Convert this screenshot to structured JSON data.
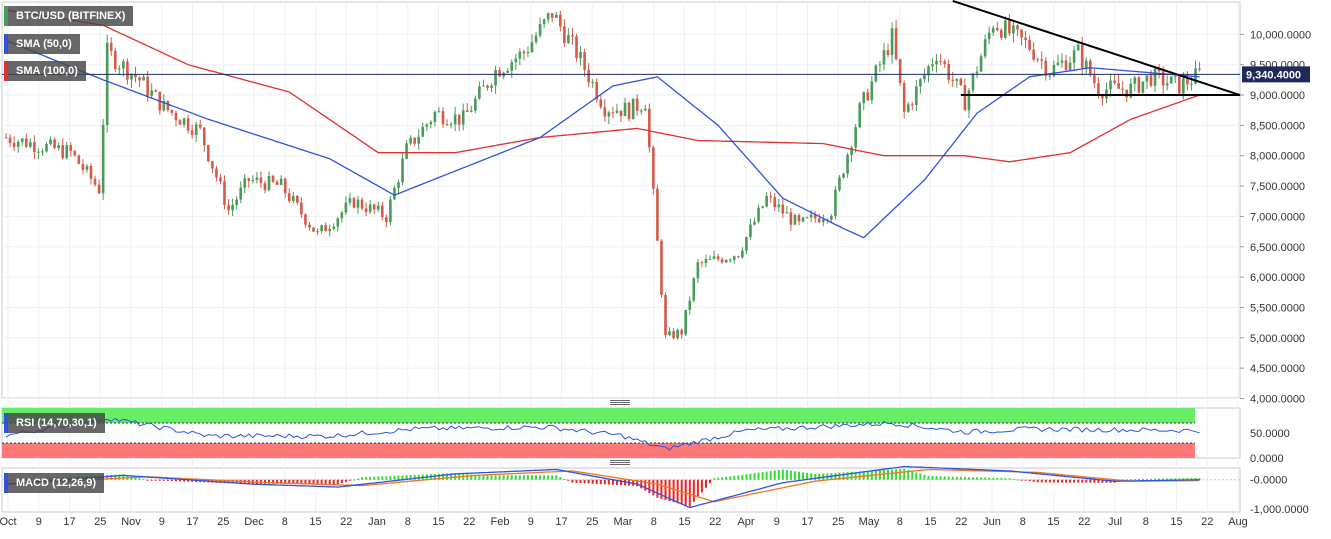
{
  "legend": {
    "symbol": "BTC/USD (BITFINEX)",
    "sma50": "SMA (50,0)",
    "sma100": "SMA (100,0)",
    "rsi": "RSI (14,70,30,1)",
    "macd": "MACD (12,26,9)"
  },
  "colors": {
    "up": "#4a9a5a",
    "down": "#d55a4a",
    "sma50": "#2f53e0",
    "sma100": "#e03030",
    "trend": "#000000",
    "rsi_over": "#66ee66",
    "rsi_under": "#ff7777",
    "macd_pos": "#33dd33",
    "macd_neg": "#ee2222",
    "macd_line": "#2f53e0",
    "signal_line": "#ee7722",
    "price_tag_bg": "#1e2a5a"
  },
  "chart_data": [
    {
      "type": "candlestick",
      "title": "BTC/USD (BITFINEX)",
      "x_tick_labels": [
        "Oct",
        "9",
        "17",
        "25",
        "Nov",
        "9",
        "17",
        "25",
        "Dec",
        "8",
        "15",
        "22",
        "Jan",
        "8",
        "15",
        "22",
        "Feb",
        "9",
        "17",
        "25",
        "Mar",
        "8",
        "15",
        "22",
        "Apr",
        "9",
        "17",
        "25",
        "May",
        "8",
        "15",
        "22",
        "Jun",
        "8",
        "15",
        "22",
        "Jul",
        "8",
        "15",
        "22",
        "Aug"
      ],
      "y_tick_labels": [
        "10,000.0000",
        "9,500.0000",
        "9,000.0000",
        "8,500.0000",
        "8,000.0000",
        "7,500.0000",
        "7,000.0000",
        "6,500.0000",
        "6,000.0000",
        "5,500.0000",
        "5,000.0000",
        "4,500.0000",
        "4,000.0000"
      ],
      "ylim": [
        4000,
        10500
      ],
      "last_price_label": "9,340.4000",
      "last_price": 9340.4,
      "grid": true,
      "key_points": [
        {
          "date": "2019-10-01",
          "close": 8300
        },
        {
          "date": "2019-10-17",
          "close": 8050
        },
        {
          "date": "2019-10-24",
          "close": 7450
        },
        {
          "date": "2019-10-26",
          "close": 9700
        },
        {
          "date": "2019-11-03",
          "close": 9250
        },
        {
          "date": "2019-11-09",
          "close": 8800
        },
        {
          "date": "2019-11-18",
          "close": 8400
        },
        {
          "date": "2019-11-25",
          "close": 7100
        },
        {
          "date": "2019-11-30",
          "close": 7600
        },
        {
          "date": "2019-12-08",
          "close": 7500
        },
        {
          "date": "2019-12-17",
          "close": 6700
        },
        {
          "date": "2019-12-26",
          "close": 7250
        },
        {
          "date": "2020-01-03",
          "close": 7000
        },
        {
          "date": "2020-01-08",
          "close": 8100
        },
        {
          "date": "2020-01-15",
          "close": 8700
        },
        {
          "date": "2020-01-22",
          "close": 8600
        },
        {
          "date": "2020-01-30",
          "close": 9400
        },
        {
          "date": "2020-02-06",
          "close": 9700
        },
        {
          "date": "2020-02-13",
          "close": 10350
        },
        {
          "date": "2020-02-19",
          "close": 9700
        },
        {
          "date": "2020-02-26",
          "close": 8800
        },
        {
          "date": "2020-03-03",
          "close": 8750
        },
        {
          "date": "2020-03-07",
          "close": 8900
        },
        {
          "date": "2020-03-12",
          "close": 5000
        },
        {
          "date": "2020-03-16",
          "close": 5100
        },
        {
          "date": "2020-03-20",
          "close": 6200
        },
        {
          "date": "2020-03-30",
          "close": 6400
        },
        {
          "date": "2020-04-06",
          "close": 7300
        },
        {
          "date": "2020-04-14",
          "close": 6850
        },
        {
          "date": "2020-04-22",
          "close": 7100
        },
        {
          "date": "2020-04-29",
          "close": 8750
        },
        {
          "date": "2020-05-07",
          "close": 9950
        },
        {
          "date": "2020-05-10",
          "close": 8700
        },
        {
          "date": "2020-05-18",
          "close": 9700
        },
        {
          "date": "2020-05-25",
          "close": 8900
        },
        {
          "date": "2020-06-01",
          "close": 10200
        },
        {
          "date": "2020-06-10",
          "close": 9800
        },
        {
          "date": "2020-06-15",
          "close": 9400
        },
        {
          "date": "2020-06-22",
          "close": 9700
        },
        {
          "date": "2020-06-27",
          "close": 9100
        },
        {
          "date": "2020-07-05",
          "close": 9100
        },
        {
          "date": "2020-07-10",
          "close": 9300
        },
        {
          "date": "2020-07-17",
          "close": 9150
        },
        {
          "date": "2020-07-22",
          "close": 9340
        }
      ],
      "sma50_points": [
        {
          "date": "2019-10-01",
          "value": 9900
        },
        {
          "date": "2019-10-25",
          "value": 9250
        },
        {
          "date": "2019-11-20",
          "value": 8600
        },
        {
          "date": "2019-12-20",
          "value": 7950
        },
        {
          "date": "2020-01-05",
          "value": 7350
        },
        {
          "date": "2020-01-22",
          "value": 7800
        },
        {
          "date": "2020-02-10",
          "value": 8300
        },
        {
          "date": "2020-02-28",
          "value": 9150
        },
        {
          "date": "2020-03-10",
          "value": 9300
        },
        {
          "date": "2020-03-25",
          "value": 8500
        },
        {
          "date": "2020-04-10",
          "value": 7300
        },
        {
          "date": "2020-04-25",
          "value": 6800
        },
        {
          "date": "2020-04-30",
          "value": 6650
        },
        {
          "date": "2020-05-15",
          "value": 7600
        },
        {
          "date": "2020-05-28",
          "value": 8700
        },
        {
          "date": "2020-06-10",
          "value": 9300
        },
        {
          "date": "2020-06-25",
          "value": 9450
        },
        {
          "date": "2020-07-22",
          "value": 9300
        }
      ],
      "sma100_points": [
        {
          "date": "2019-10-01",
          "value": 10400
        },
        {
          "date": "2019-10-25",
          "value": 10150
        },
        {
          "date": "2019-11-15",
          "value": 9500
        },
        {
          "date": "2019-12-10",
          "value": 9050
        },
        {
          "date": "2020-01-01",
          "value": 8050
        },
        {
          "date": "2020-01-20",
          "value": 8050
        },
        {
          "date": "2020-02-10",
          "value": 8300
        },
        {
          "date": "2020-03-05",
          "value": 8450
        },
        {
          "date": "2020-03-20",
          "value": 8250
        },
        {
          "date": "2020-04-20",
          "value": 8200
        },
        {
          "date": "2020-05-05",
          "value": 8000
        },
        {
          "date": "2020-05-25",
          "value": 8000
        },
        {
          "date": "2020-06-05",
          "value": 7900
        },
        {
          "date": "2020-06-20",
          "value": 8050
        },
        {
          "date": "2020-07-05",
          "value": 8600
        },
        {
          "date": "2020-07-22",
          "value": 9000
        }
      ],
      "trendlines": [
        {
          "from": {
            "date": "2020-05-22",
            "value": 10550
          },
          "to": {
            "date": "2020-08-01",
            "value": 9000
          }
        },
        {
          "from": {
            "date": "2020-05-24",
            "value": 9000
          },
          "to": {
            "date": "2020-08-01",
            "value": 9000
          }
        }
      ],
      "horizontal_line": 9340.4
    },
    {
      "type": "line",
      "title": "RSI (14,70,30,1)",
      "y_tick_labels": [
        "50.0000",
        "0.0000"
      ],
      "ylim": [
        0,
        100
      ],
      "overbought": 70,
      "oversold": 30,
      "points": [
        {
          "date": "2019-10-01",
          "value": 45
        },
        {
          "date": "2019-10-26",
          "value": 80
        },
        {
          "date": "2019-11-20",
          "value": 44
        },
        {
          "date": "2019-12-20",
          "value": 44
        },
        {
          "date": "2020-01-10",
          "value": 58
        },
        {
          "date": "2020-02-12",
          "value": 62
        },
        {
          "date": "2020-03-01",
          "value": 45
        },
        {
          "date": "2020-03-12",
          "value": 18
        },
        {
          "date": "2020-04-01",
          "value": 55
        },
        {
          "date": "2020-05-07",
          "value": 70
        },
        {
          "date": "2020-05-25",
          "value": 52
        },
        {
          "date": "2020-06-10",
          "value": 58
        },
        {
          "date": "2020-07-22",
          "value": 55
        }
      ]
    },
    {
      "type": "line",
      "title": "MACD (12,26,9)",
      "y_tick_labels": [
        "-0.0000",
        "-1,000.0000"
      ],
      "ylim": [
        -1100,
        400
      ],
      "macd_points": [
        {
          "date": "2019-10-01",
          "value": -150
        },
        {
          "date": "2019-10-30",
          "value": 150
        },
        {
          "date": "2019-12-01",
          "value": -150
        },
        {
          "date": "2019-12-22",
          "value": -250
        },
        {
          "date": "2020-01-20",
          "value": 200
        },
        {
          "date": "2020-02-14",
          "value": 350
        },
        {
          "date": "2020-03-05",
          "value": -150
        },
        {
          "date": "2020-03-18",
          "value": -950
        },
        {
          "date": "2020-04-10",
          "value": -100
        },
        {
          "date": "2020-05-10",
          "value": 450
        },
        {
          "date": "2020-06-05",
          "value": 300
        },
        {
          "date": "2020-07-01",
          "value": -50
        },
        {
          "date": "2020-07-22",
          "value": 0
        }
      ],
      "signal_points": [
        {
          "date": "2019-10-01",
          "value": -150
        },
        {
          "date": "2019-11-05",
          "value": 100
        },
        {
          "date": "2019-12-05",
          "value": -100
        },
        {
          "date": "2019-12-28",
          "value": -200
        },
        {
          "date": "2020-01-25",
          "value": 150
        },
        {
          "date": "2020-02-18",
          "value": 300
        },
        {
          "date": "2020-03-10",
          "value": -150
        },
        {
          "date": "2020-03-24",
          "value": -750
        },
        {
          "date": "2020-04-18",
          "value": -50
        },
        {
          "date": "2020-05-16",
          "value": 350
        },
        {
          "date": "2020-06-12",
          "value": 250
        },
        {
          "date": "2020-07-05",
          "value": -50
        },
        {
          "date": "2020-07-22",
          "value": -30
        }
      ]
    }
  ]
}
